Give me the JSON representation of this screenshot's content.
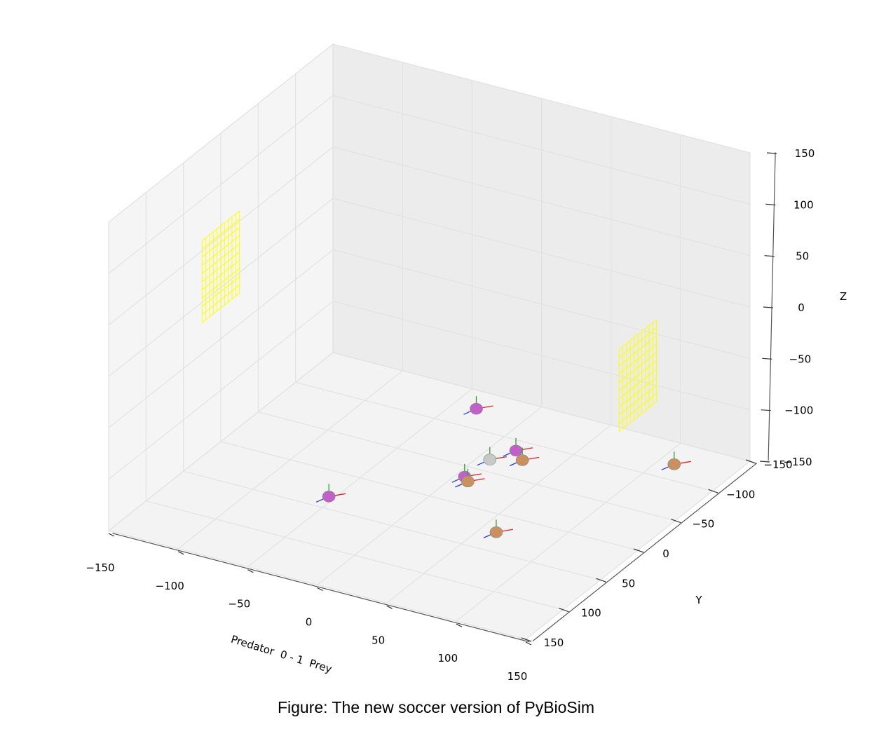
{
  "chart_data": {
    "type": "scatter",
    "projection": "3d",
    "title": "",
    "xlabel": "Predator  0 - 1  Prey",
    "ylabel": "Y",
    "zlabel": "Z",
    "xlim": [
      -150,
      150
    ],
    "ylim": [
      -150,
      150
    ],
    "zlim": [
      -150,
      150
    ],
    "x_ticks": [
      "−150",
      "−100",
      "−50",
      "0",
      "50",
      "100",
      "150"
    ],
    "y_ticks": [
      "−150",
      "−100",
      "−50",
      "0",
      "50",
      "100",
      "150"
    ],
    "z_ticks": [
      "−150",
      "−100",
      "−50",
      "0",
      "50",
      "100",
      "150"
    ],
    "grid": true,
    "pane_color": "#f0f0f0",
    "goals": [
      {
        "x": -150,
        "y_range": [
          -25,
          25
        ],
        "z_range": [
          -20,
          60
        ],
        "color": "#ffff00"
      },
      {
        "x": 150,
        "y_range": [
          -25,
          25
        ],
        "z_range": [
          -20,
          60
        ],
        "color": "#ffff00"
      }
    ],
    "series": [
      {
        "color": "#c060c8",
        "points": [
          {
            "x": -20,
            "y": -100,
            "z": -130
          },
          {
            "x": 30,
            "y": -60,
            "z": -130
          },
          {
            "x": -40,
            "y": 60,
            "z": -130
          },
          {
            "x": 20,
            "y": -10,
            "z": -130
          }
        ]
      },
      {
        "color": "#c99060",
        "points": [
          {
            "x": 40,
            "y": -50,
            "z": -130
          },
          {
            "x": 25,
            "y": -5,
            "z": -130
          },
          {
            "x": 125,
            "y": -95,
            "z": -130
          },
          {
            "x": 75,
            "y": 50,
            "z": -130
          }
        ]
      },
      {
        "color": "#c8c8c8",
        "points": [
          {
            "x": 22,
            "y": -40,
            "z": -130
          }
        ]
      }
    ]
  },
  "caption": "Figure: The new soccer version of PyBioSim"
}
